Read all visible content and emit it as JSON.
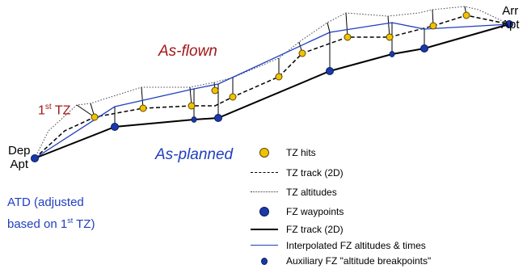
{
  "labels": {
    "dep_line1": "Dep",
    "dep_line2": "Apt",
    "arr_line1": "Arr",
    "arr_line2": "Apt",
    "as_flown": "As-flown",
    "as_planned": "As-planned",
    "first_tz_num": "1",
    "first_tz_sup": "st",
    "first_tz_rest": " TZ",
    "atd_line1": "ATD (adjusted",
    "atd_line2_pre": "based on 1",
    "atd_line2_sup": "st",
    "atd_line2_post": " TZ)"
  },
  "legend": [
    {
      "symbol": "tz-hit-dot",
      "label": "TZ hits"
    },
    {
      "symbol": "dashed-line",
      "label": "TZ track (2D)"
    },
    {
      "symbol": "dotted-line",
      "label": "TZ altitudes"
    },
    {
      "symbol": "fz-waypoint-dot",
      "label": "FZ waypoints"
    },
    {
      "symbol": "solid-line",
      "label": "FZ track (2D)"
    },
    {
      "symbol": "blue-line",
      "label": "Interpolated FZ altitudes & times"
    },
    {
      "symbol": "aux-dot",
      "label": "Auxiliary FZ \"altitude breakpoints\""
    }
  ],
  "colors": {
    "tz_hit_fill": "#f2c200",
    "fz_waypoint_fill": "#1a3aa8",
    "interpolated_line": "#1f3fbf",
    "as_flown_text": "#a01818",
    "as_planned_text": "#1f3fbf"
  }
}
